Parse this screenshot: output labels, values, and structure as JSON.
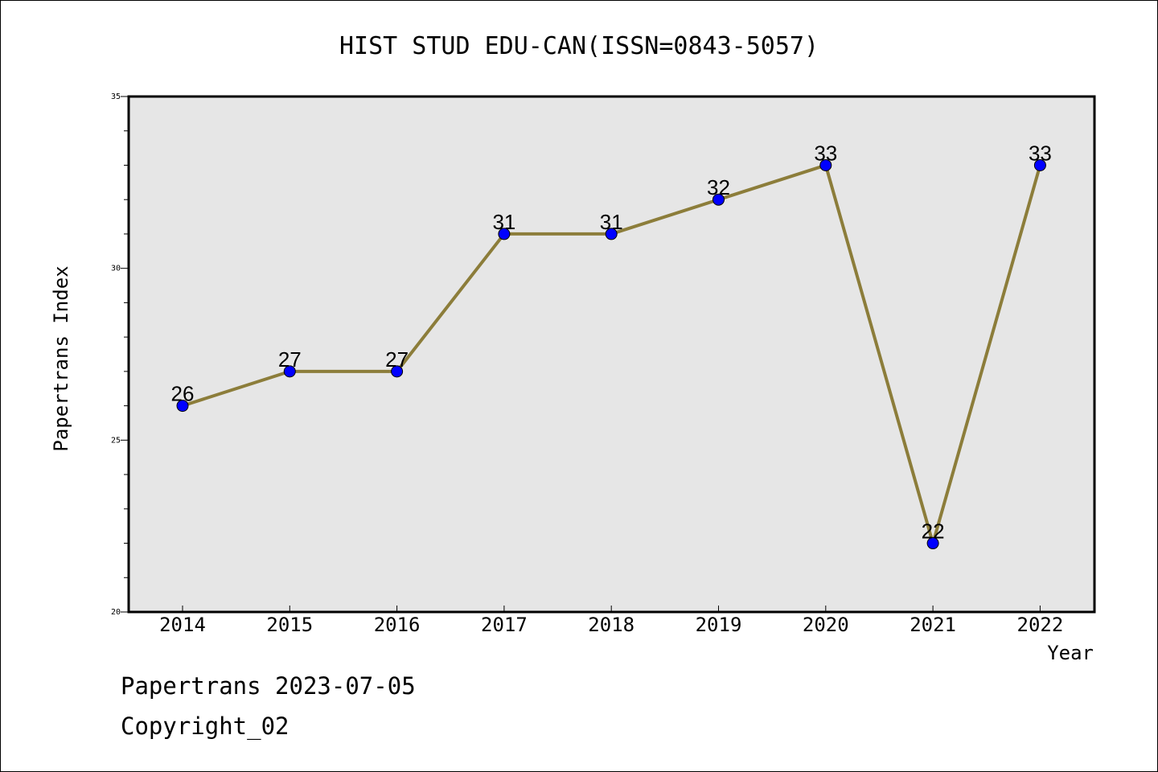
{
  "chart_data": {
    "type": "line",
    "title": "HIST STUD EDU-CAN(ISSN=0843-5057)",
    "xlabel": "Year",
    "ylabel": "Papertrans Index",
    "categories": [
      "2014",
      "2015",
      "2016",
      "2017",
      "2018",
      "2019",
      "2020",
      "2021",
      "2022"
    ],
    "values": [
      26,
      27,
      27,
      31,
      31,
      32,
      33,
      22,
      33
    ],
    "ylim": [
      20,
      35
    ],
    "yticks": [
      "20",
      "25",
      "30",
      "35"
    ],
    "grid": false,
    "line_color": "#8c7d3a",
    "marker_color": "#0000ff",
    "plot_background": "#e6e6e6"
  },
  "footer": {
    "line1": "Papertrans 2023-07-05",
    "line2": "Copyright_02"
  }
}
